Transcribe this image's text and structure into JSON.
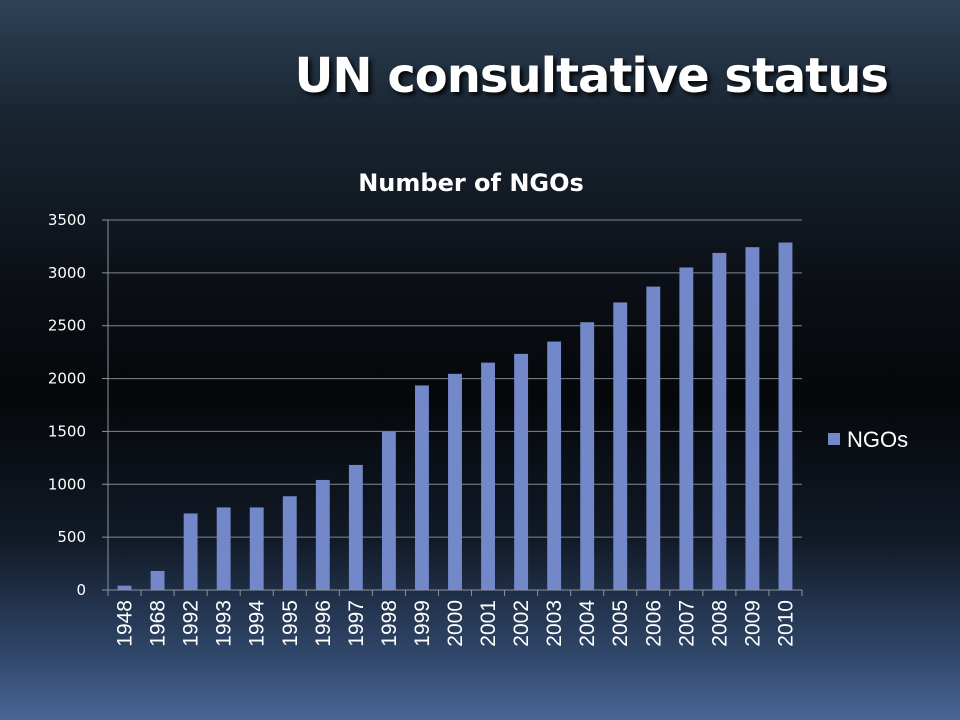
{
  "slide": {
    "title": "UN consultative status"
  },
  "chart_data": {
    "type": "bar",
    "title": "Number of NGOs",
    "xlabel": "",
    "ylabel": "",
    "categories": [
      "1948",
      "1968",
      "1992",
      "1993",
      "1994",
      "1995",
      "1996",
      "1997",
      "1998",
      "1999",
      "2000",
      "2001",
      "2002",
      "2003",
      "2004",
      "2005",
      "2006",
      "2007",
      "2008",
      "2009",
      "2010"
    ],
    "series": [
      {
        "name": "NGOs",
        "color": "#7388c9",
        "values": [
          41,
          180,
          724,
          781,
          781,
          887,
          1041,
          1183,
          1497,
          1935,
          2045,
          2151,
          2234,
          2350,
          2533,
          2720,
          2870,
          3051,
          3189,
          3243,
          3287
        ]
      }
    ],
    "ylim": [
      0,
      3500
    ],
    "yticks": [
      "0",
      "500",
      "1000",
      "1500",
      "2000",
      "2500",
      "3000",
      "3500"
    ],
    "grid": true,
    "legend": "right"
  }
}
